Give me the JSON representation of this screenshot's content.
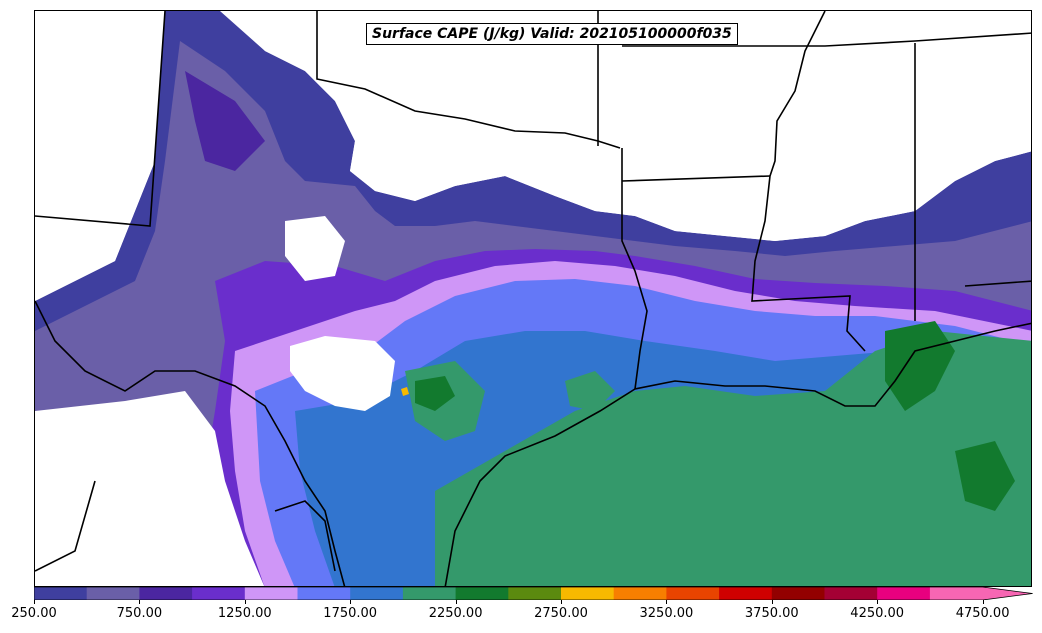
{
  "title": "Surface CAPE (J/kg) Valid: 202105100000f035",
  "colorbar": {
    "levels": [
      250,
      500,
      750,
      1000,
      1250,
      1500,
      1750,
      2000,
      2250,
      2500,
      2750,
      3000,
      3250,
      3500,
      3750,
      4000,
      4250,
      4500,
      4750
    ],
    "colors": [
      "#3f3f9f",
      "#6a5fa8",
      "#4b26a0",
      "#6a2ecc",
      "#cf96f7",
      "#6478f7",
      "#3275cf",
      "#34996b",
      "#127a2e",
      "#5b8a0f",
      "#f7b900",
      "#f77f00",
      "#e84400",
      "#cf0000",
      "#930000",
      "#a40034",
      "#e8007f",
      "#f766b3"
    ],
    "extend": "max",
    "tick_labels": [
      "250.00",
      "750.00",
      "1250.00",
      "1750.00",
      "2250.00",
      "2750.00",
      "3250.00",
      "3750.00",
      "4250.00",
      "4750.00"
    ]
  },
  "map": {
    "projection": "Lambert Conformal (US Gulf Coast / Texas / Louisiana / Mississippi region)",
    "field": "Surface CAPE",
    "units": "J/kg",
    "features": [
      "state borders",
      "coastlines",
      "rivers"
    ]
  }
}
